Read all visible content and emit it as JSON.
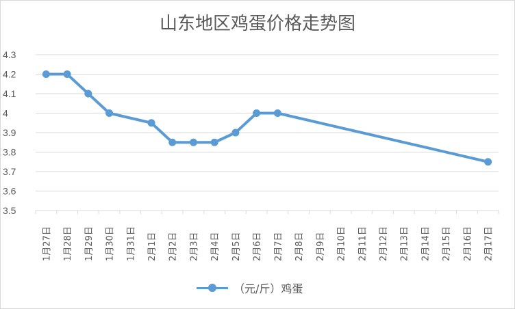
{
  "chart_data": {
    "type": "line",
    "title": "山东地区鸡蛋价格走势图",
    "categories": [
      "1月27日",
      "1月28日",
      "1月29日",
      "1月30日",
      "1月31日",
      "2月1日",
      "2月2日",
      "2月3日",
      "2月4日",
      "2月5日",
      "2月6日",
      "2月7日",
      "2月8日",
      "2月9日",
      "2月10日",
      "2月11日",
      "2月12日",
      "2月13日",
      "2月14日",
      "2月15日",
      "2月16日",
      "2月17日"
    ],
    "ylim": [
      3.5,
      4.3
    ],
    "yticks": [
      "3.5",
      "3.6",
      "3.7",
      "3.8",
      "3.9",
      "4",
      "4.1",
      "4.2",
      "4.3"
    ],
    "grid": true,
    "legend_position": "bottom",
    "series": [
      {
        "name": "（元/斤）鸡蛋",
        "color": "#5b9bd5",
        "values": [
          4.2,
          4.2,
          4.1,
          4.0,
          null,
          3.95,
          3.85,
          3.85,
          3.85,
          3.9,
          4.0,
          4.0,
          null,
          null,
          null,
          null,
          null,
          null,
          null,
          null,
          null,
          3.75
        ]
      }
    ]
  }
}
